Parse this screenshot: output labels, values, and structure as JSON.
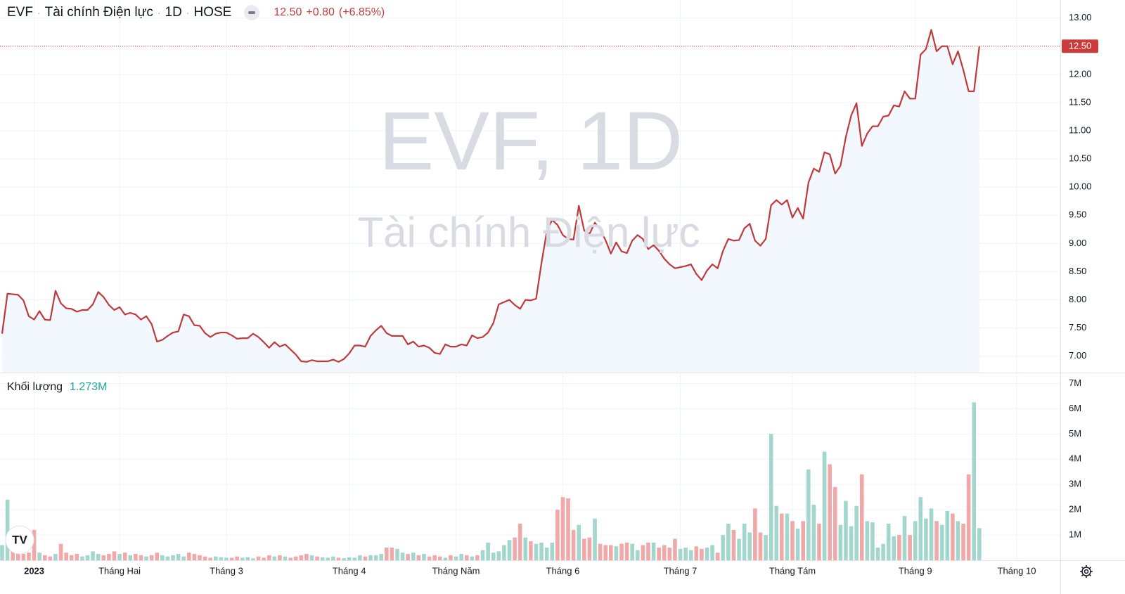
{
  "header": {
    "symbol": "EVF",
    "name": "Tài chính Điện lực",
    "interval": "1D",
    "exchange": "HOSE",
    "last": "12.50",
    "change": "+0.80",
    "change_pct": "(+6.85%)"
  },
  "watermark": {
    "line1": "EVF, 1D",
    "line2": "Tài chính Điện lực"
  },
  "chart_data": [
    {
      "type": "line",
      "color": "#c0393b",
      "area_color": "#f3f7fe",
      "last_label": "12.50",
      "badge_color": "#cc3b3b",
      "grid": true,
      "ylim": [
        6.71,
        13.32
      ],
      "yticks": [
        {
          "value": 7,
          "label": "7.00"
        },
        {
          "value": 7.5,
          "label": "7.50"
        },
        {
          "value": 8,
          "label": "8.00"
        },
        {
          "value": 8.5,
          "label": "8.50"
        },
        {
          "value": 9,
          "label": "9.00"
        },
        {
          "value": 9.5,
          "label": "9.50"
        },
        {
          "value": 10,
          "label": "10.00"
        },
        {
          "value": 10.5,
          "label": "10.50"
        },
        {
          "value": 11,
          "label": "11.00"
        },
        {
          "value": 11.5,
          "label": "11.50"
        },
        {
          "value": 12,
          "label": "12.00"
        },
        {
          "value": 12.5,
          "label": "12.50"
        },
        {
          "value": 13,
          "label": "13.00"
        }
      ],
      "values": [
        7.4,
        8.11,
        8.1,
        8.09,
        7.99,
        7.71,
        7.65,
        7.8,
        7.65,
        7.64,
        8.16,
        7.94,
        7.85,
        7.84,
        7.79,
        7.82,
        7.82,
        7.92,
        8.14,
        8.05,
        7.91,
        7.82,
        7.87,
        7.74,
        7.77,
        7.74,
        7.65,
        7.71,
        7.57,
        7.26,
        7.29,
        7.36,
        7.42,
        7.44,
        7.74,
        7.71,
        7.55,
        7.54,
        7.41,
        7.34,
        7.4,
        7.42,
        7.42,
        7.37,
        7.31,
        7.32,
        7.32,
        7.4,
        7.34,
        7.25,
        7.15,
        7.25,
        7.17,
        7.21,
        7.12,
        7.03,
        6.91,
        6.9,
        6.93,
        6.91,
        6.91,
        6.91,
        6.94,
        6.9,
        6.95,
        7.05,
        7.19,
        7.19,
        7.17,
        7.36,
        7.46,
        7.54,
        7.41,
        7.36,
        7.36,
        7.36,
        7.21,
        7.26,
        7.17,
        7.19,
        7.15,
        7.06,
        7.04,
        7.21,
        7.17,
        7.17,
        7.21,
        7.19,
        7.37,
        7.32,
        7.34,
        7.42,
        7.59,
        7.92,
        7.96,
        8.0,
        7.91,
        7.84,
        8.0,
        7.99,
        8.02,
        8.65,
        9.21,
        9.42,
        9.33,
        9.15,
        9.08,
        9.07,
        9.67,
        9.23,
        9.17,
        9.37,
        9.25,
        9.06,
        8.82,
        9.02,
        8.86,
        8.83,
        9.05,
        9.15,
        9.08,
        8.9,
        8.97,
        8.87,
        8.73,
        8.63,
        8.56,
        8.58,
        8.6,
        8.63,
        8.46,
        8.35,
        8.52,
        8.63,
        8.56,
        8.87,
        9.08,
        9.05,
        9.06,
        9.27,
        9.35,
        9.05,
        8.96,
        9.08,
        9.68,
        9.77,
        9.69,
        9.77,
        9.46,
        9.63,
        9.44,
        10.08,
        10.33,
        10.27,
        10.62,
        10.58,
        10.24,
        10.38,
        10.89,
        11.27,
        11.49,
        10.73,
        10.95,
        11.08,
        11.08,
        11.25,
        11.27,
        11.45,
        11.43,
        11.7,
        11.57,
        11.57,
        12.35,
        12.45,
        12.79,
        12.41,
        12.5,
        12.5,
        12.18,
        12.41,
        12.08,
        11.7,
        11.7,
        12.5,
        null,
        null,
        null,
        null,
        null,
        null,
        null
      ]
    },
    {
      "type": "bar",
      "title": "Khối lượng",
      "last_label": "1.273M",
      "up_color": "#a3d6cc",
      "down_color": "#f0a8a8",
      "label_color": "#26a69a",
      "grid": true,
      "ylim": [
        0,
        7430000
      ],
      "yticks": [
        {
          "value": 1000000,
          "label": "1M"
        },
        {
          "value": 2000000,
          "label": "2M"
        },
        {
          "value": 3000000,
          "label": "3M"
        },
        {
          "value": 4000000,
          "label": "4M"
        },
        {
          "value": 5000000,
          "label": "5M"
        },
        {
          "value": 6000000,
          "label": "6M"
        },
        {
          "value": 7000000,
          "label": "7M"
        }
      ],
      "categories": [
        null,
        null,
        null,
        null,
        null,
        null,
        "2023",
        null,
        null,
        null,
        null,
        null,
        null,
        null,
        null,
        null,
        null,
        null,
        null,
        null,
        null,
        null,
        "Tháng Hai",
        null,
        null,
        null,
        null,
        null,
        null,
        null,
        null,
        null,
        null,
        null,
        null,
        null,
        null,
        null,
        null,
        null,
        null,
        null,
        "Tháng 3",
        null,
        null,
        null,
        null,
        null,
        null,
        null,
        null,
        null,
        null,
        null,
        null,
        null,
        null,
        null,
        null,
        null,
        null,
        null,
        null,
        null,
        null,
        "Tháng 4",
        null,
        null,
        null,
        null,
        null,
        null,
        null,
        null,
        null,
        null,
        null,
        null,
        null,
        null,
        null,
        null,
        null,
        null,
        null,
        "Tháng Năm",
        null,
        null,
        null,
        null,
        null,
        null,
        null,
        null,
        null,
        null,
        null,
        null,
        null,
        null,
        null,
        null,
        null,
        null,
        null,
        "Tháng 6",
        null,
        null,
        null,
        null,
        null,
        null,
        null,
        null,
        null,
        null,
        null,
        null,
        null,
        null,
        null,
        null,
        null,
        null,
        null,
        null,
        null,
        "Tháng 7",
        null,
        null,
        null,
        null,
        null,
        null,
        null,
        null,
        null,
        null,
        null,
        null,
        null,
        null,
        null,
        null,
        null,
        null,
        null,
        null,
        "Tháng Tám",
        null,
        null,
        null,
        null,
        null,
        null,
        null,
        null,
        null,
        null,
        null,
        null,
        null,
        null,
        null,
        null,
        null,
        null,
        null,
        null,
        null,
        null,
        "Tháng 9",
        null,
        null,
        null,
        null,
        null,
        null,
        null,
        null,
        null,
        null,
        null,
        null,
        null,
        null,
        null,
        null,
        null,
        null,
        "Tháng 10"
      ],
      "values": [
        600000,
        2400000,
        400000,
        300000,
        250000,
        300000,
        1200000,
        300000,
        200000,
        150000,
        250000,
        650000,
        300000,
        200000,
        250000,
        150000,
        200000,
        350000,
        250000,
        200000,
        250000,
        350000,
        250000,
        300000,
        200000,
        250000,
        200000,
        150000,
        200000,
        300000,
        200000,
        150000,
        200000,
        250000,
        150000,
        300000,
        250000,
        200000,
        150000,
        100000,
        150000,
        120000,
        100000,
        100000,
        150000,
        100000,
        120000,
        80000,
        150000,
        100000,
        200000,
        150000,
        200000,
        150000,
        100000,
        150000,
        200000,
        250000,
        200000,
        150000,
        120000,
        100000,
        150000,
        100000,
        80000,
        120000,
        100000,
        200000,
        150000,
        200000,
        200000,
        250000,
        500000,
        500000,
        450000,
        300000,
        250000,
        300000,
        200000,
        250000,
        150000,
        200000,
        150000,
        100000,
        200000,
        150000,
        250000,
        200000,
        150000,
        200000,
        400000,
        700000,
        300000,
        350000,
        600000,
        800000,
        900000,
        1450000,
        900000,
        750000,
        650000,
        700000,
        500000,
        700000,
        2000000,
        2500000,
        2450000,
        1200000,
        1400000,
        850000,
        900000,
        1650000,
        650000,
        600000,
        600000,
        550000,
        650000,
        700000,
        650000,
        400000,
        600000,
        700000,
        700000,
        500000,
        600000,
        500000,
        850000,
        450000,
        500000,
        400000,
        550000,
        450000,
        500000,
        600000,
        300000,
        1000000,
        1450000,
        1200000,
        850000,
        1450000,
        1100000,
        2050000,
        1100000,
        1000000,
        5000000,
        2150000,
        1850000,
        1850000,
        1550000,
        1250000,
        1550000,
        3600000,
        2200000,
        1450000,
        4300000,
        3800000,
        2900000,
        1400000,
        2350000,
        1350000,
        2150000,
        3400000,
        1550000,
        1500000,
        500000,
        650000,
        1450000,
        950000,
        1000000,
        1750000,
        1000000,
        1550000,
        2500000,
        1650000,
        2050000,
        1550000,
        1400000,
        1950000,
        1850000,
        1550000,
        1450000,
        3400000,
        6250000,
        1273000,
        null,
        null,
        null,
        null,
        null,
        null,
        null
      ]
    }
  ]
}
